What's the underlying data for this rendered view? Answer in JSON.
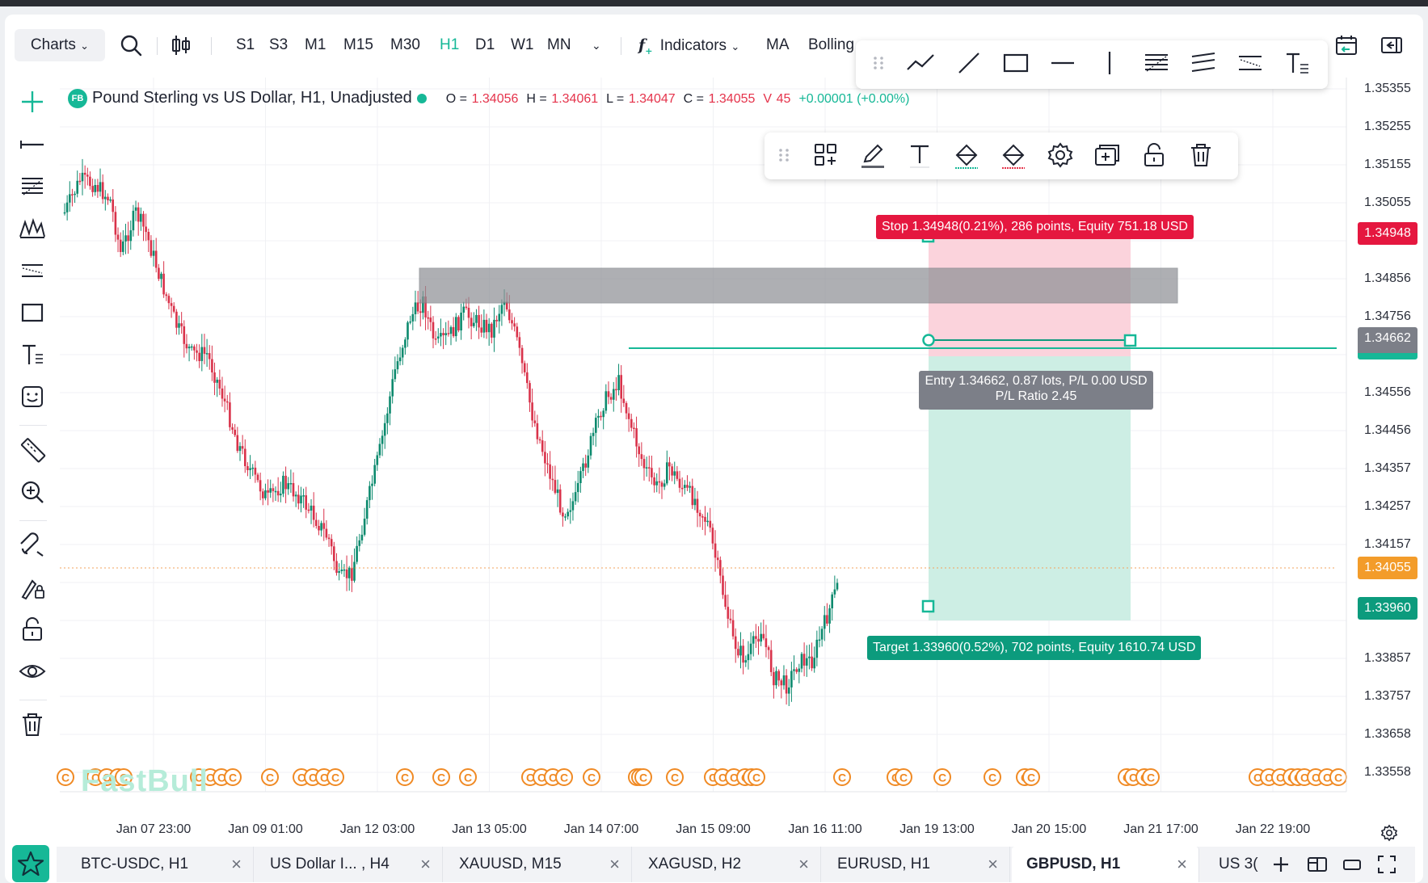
{
  "toolbar": {
    "charts_label": "Charts",
    "timeframes": [
      "S1",
      "S3",
      "M1",
      "M15",
      "M30",
      "H1",
      "D1",
      "W1",
      "MN"
    ],
    "active_timeframe": "H1",
    "indicators_label": "Indicators",
    "ma_label": "MA",
    "bolling_label": "Bolling"
  },
  "legend": {
    "badge": "FB",
    "symbol": "Pound Sterling vs US Dollar, H1, Unadjusted",
    "o_key": "O =",
    "o_val": "1.34056",
    "h_key": "H =",
    "h_val": "1.34061",
    "l_key": "L =",
    "l_val": "1.34047",
    "c_key": "C =",
    "c_val": "1.34055",
    "v_key": "V",
    "v_val": "45",
    "change": "+0.00001 (+0.00%)"
  },
  "position": {
    "stop_label": "Stop 1.34948(0.21%), 286 points, Equity 751.18 USD",
    "entry_line1": "Entry 1.34662, 0.87 lots, P/L 0.00 USD",
    "entry_line2": "P/L Ratio 2.45",
    "target_label": "Target 1.33960(0.52%), 702 points, Equity 1610.74 USD"
  },
  "price_axis": {
    "labels": [
      "1.35355",
      "1.35255",
      "1.35155",
      "1.35055",
      "1.34856",
      "1.34756",
      "1.34556",
      "1.34456",
      "1.34357",
      "1.34257",
      "1.34157",
      "1.33857",
      "1.33757",
      "1.33658",
      "1.33558"
    ],
    "stop_price": "1.34948",
    "entry_price": "1.34662",
    "current_price": "1.34055",
    "target_price": "1.33960"
  },
  "time_axis": [
    "Jan 07 23:00",
    "Jan 09 01:00",
    "Jan 12 03:00",
    "Jan 13 05:00",
    "Jan 14 07:00",
    "Jan 15 09:00",
    "Jan 16 11:00",
    "Jan 19 13:00",
    "Jan 20 15:00",
    "Jan 21 17:00",
    "Jan 22 19:00"
  ],
  "watermark": "FastBull",
  "tabs": [
    {
      "label": "BTC-USDC, H1"
    },
    {
      "label": "US Dollar I... , H4"
    },
    {
      "label": "XAUUSD, M15"
    },
    {
      "label": "XAGUSD, H2"
    },
    {
      "label": "EURUSD, H1"
    },
    {
      "label": "GBPUSD, H1"
    }
  ],
  "tab_overflow": "US 3(",
  "event_marker": "C",
  "colors": {
    "accent": "#16b897",
    "up_candle": "#0c8a6e",
    "down_candle": "#d9324a",
    "stop_zone": "#fbd3dc",
    "target_zone": "#cdeee4",
    "resistance_zone": "#a9abb0",
    "event_marker": "#f08a24"
  }
}
